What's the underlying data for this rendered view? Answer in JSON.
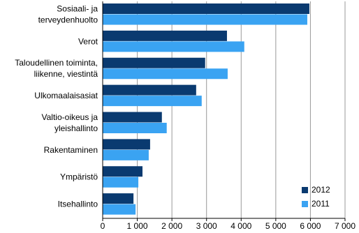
{
  "chart_data": {
    "type": "hbar",
    "categories": [
      "Sosiaali- ja\nterveydenhuolto",
      "Verot",
      "Taloudellinen toiminta,\nliikenne, viestintä",
      "Ulkomaalaisasiat",
      "Valtio-oikeus ja\nyleishallinto",
      "Rakentaminen",
      "Ympäristö",
      "Itsehallinto"
    ],
    "series": [
      {
        "name": "2012",
        "color": "#0a3a70",
        "values": [
          5970,
          3590,
          2960,
          2700,
          1710,
          1370,
          1150,
          890
        ]
      },
      {
        "name": "2011",
        "color": "#3aa3f2",
        "values": [
          5910,
          4090,
          3610,
          2860,
          1850,
          1330,
          1030,
          950
        ]
      }
    ],
    "xlim": [
      0,
      7000
    ],
    "xticks": [
      0,
      {
        "value": 1000,
        "label": "1 000"
      },
      {
        "value": 2000,
        "label": "2 000"
      },
      {
        "value": 3000,
        "label": "3 000"
      },
      {
        "value": 4000,
        "label": "4 000"
      },
      {
        "value": 5000,
        "label": "5 000"
      },
      {
        "value": 6000,
        "label": "6 000"
      },
      {
        "value": 7000,
        "label": "7 000"
      }
    ],
    "grid": true,
    "legend": "lower-right"
  }
}
